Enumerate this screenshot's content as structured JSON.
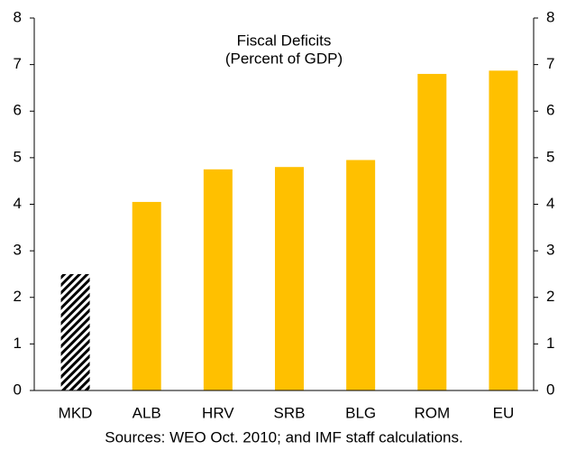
{
  "chart_data": {
    "type": "bar",
    "title": "Fiscal Deficits",
    "subtitle": "(Percent of GDP)",
    "categories": [
      "MKD",
      "ALB",
      "HRV",
      "SRB",
      "BLG",
      "ROM",
      "EU"
    ],
    "values": [
      2.5,
      4.05,
      4.75,
      4.8,
      4.95,
      6.8,
      6.87
    ],
    "color": "#FFC000",
    "patterns": [
      "hatched",
      "solid",
      "solid",
      "solid",
      "solid",
      "solid",
      "solid"
    ],
    "ylim": [
      0,
      8
    ],
    "yticks": [
      0,
      1,
      2,
      3,
      4,
      5,
      6,
      7,
      8
    ],
    "y2lim": [
      0,
      8
    ],
    "y2ticks": [
      0,
      1,
      2,
      3,
      4,
      5,
      6,
      7,
      8
    ],
    "grid": false,
    "note": "Sources: WEO Oct. 2010; and IMF staff calculations."
  }
}
